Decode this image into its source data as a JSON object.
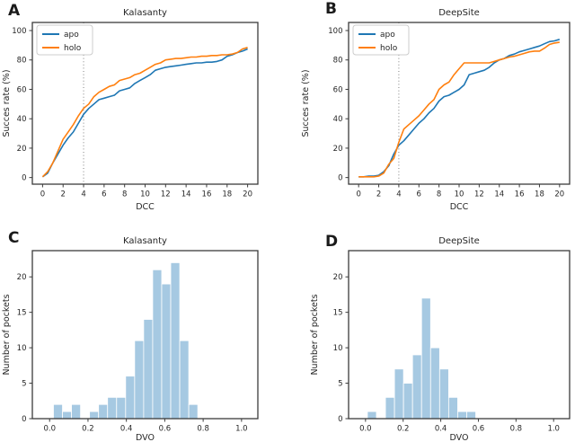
{
  "palette": {
    "apo": "#1f77b4",
    "holo": "#ff7f0e",
    "bars": "#a6c9e2",
    "bar_edge": "#ffffff",
    "spine": "#3b3b3b",
    "text": "#262626",
    "vline": "#808080",
    "legend_border": "#cccccc"
  },
  "chart_data": [
    {
      "type": "line",
      "panel_label": "A",
      "title": "Kalasanty",
      "xlabel": "DCC",
      "ylabel": "Succes rate (%)",
      "xlim": [
        -1,
        21
      ],
      "ylim": [
        -4.5,
        105.5
      ],
      "xticks": [
        0,
        2,
        4,
        6,
        8,
        10,
        12,
        14,
        16,
        18,
        20
      ],
      "xtick_labels": [
        "0",
        "2",
        "4",
        "6",
        "8",
        "10",
        "12",
        "14",
        "16",
        "18",
        "20"
      ],
      "yticks": [
        0,
        20,
        40,
        60,
        80,
        100
      ],
      "ytick_labels": [
        "0",
        "20",
        "40",
        "60",
        "80",
        "100"
      ],
      "vline_x": 4,
      "grid": false,
      "legend_position": "upper left",
      "x_start": 0,
      "x_step": 0.5,
      "series": [
        {
          "name": "apo",
          "color": "#1f77b4",
          "values": [
            0.5,
            3,
            10,
            16,
            22,
            27,
            31,
            37,
            43,
            47,
            50,
            53,
            54,
            55,
            56,
            59,
            60,
            61,
            64,
            66,
            68,
            70,
            73,
            74,
            75,
            75.5,
            76,
            76.5,
            77,
            77.5,
            78,
            78,
            78.5,
            78.5,
            79,
            80,
            82.5,
            83.5,
            85,
            86,
            87.5
          ]
        },
        {
          "name": "holo",
          "color": "#ff7f0e",
          "values": [
            0.5,
            4,
            10,
            18,
            26,
            31,
            36,
            42,
            47,
            50,
            55,
            58,
            60,
            62,
            63,
            66,
            67,
            68,
            70,
            71,
            73,
            75,
            77,
            78,
            80,
            80.5,
            81,
            81,
            81.5,
            82,
            82,
            82.5,
            82.5,
            83,
            83,
            83.5,
            83.5,
            84,
            85,
            87.5,
            88.5
          ]
        }
      ]
    },
    {
      "type": "line",
      "panel_label": "B",
      "title": "DeepSite",
      "xlabel": "DCC",
      "ylabel": "Succes rate (%)",
      "xlim": [
        -1,
        21
      ],
      "ylim": [
        -4.5,
        105.5
      ],
      "xticks": [
        0,
        2,
        4,
        6,
        8,
        10,
        12,
        14,
        16,
        18,
        20
      ],
      "xtick_labels": [
        "0",
        "2",
        "4",
        "6",
        "8",
        "10",
        "12",
        "14",
        "16",
        "18",
        "20"
      ],
      "yticks": [
        0,
        20,
        40,
        60,
        80,
        100
      ],
      "ytick_labels": [
        "0",
        "20",
        "40",
        "60",
        "80",
        "100"
      ],
      "vline_x": 4,
      "grid": false,
      "legend_position": "upper left",
      "x_start": 0,
      "x_step": 0.5,
      "series": [
        {
          "name": "apo",
          "color": "#1f77b4",
          "values": [
            0.5,
            0.5,
            1,
            1,
            1.5,
            4,
            8,
            16,
            22,
            25,
            29,
            33,
            37,
            40,
            44,
            47,
            52,
            55,
            56,
            58,
            60,
            63,
            70,
            71,
            72,
            73,
            75,
            78,
            80,
            81,
            83,
            84,
            85.5,
            86.5,
            87.5,
            88.5,
            89.5,
            91,
            92.5,
            93,
            94
          ]
        },
        {
          "name": "holo",
          "color": "#ff7f0e",
          "values": [
            0.5,
            0.5,
            0.5,
            0.5,
            1,
            3,
            9,
            13,
            24,
            33,
            36,
            39,
            42,
            46,
            50,
            53,
            60,
            63,
            65,
            70,
            74,
            78,
            78,
            78,
            78,
            78,
            78,
            79,
            80,
            81,
            82,
            82.5,
            83.5,
            84.5,
            85.5,
            86,
            86,
            88,
            90.5,
            91.5,
            92
          ]
        }
      ]
    },
    {
      "type": "histogram",
      "panel_label": "C",
      "title": "Kalasanty",
      "xlabel": "DVO",
      "ylabel": "Number of pockets",
      "xlim": [
        -0.09,
        1.085
      ],
      "ylim": [
        0,
        23.7
      ],
      "xticks": [
        0.0,
        0.2,
        0.4,
        0.6,
        0.8,
        1.0
      ],
      "xtick_labels": [
        "0.0",
        "0.2",
        "0.4",
        "0.6",
        "0.8",
        "1.0"
      ],
      "yticks": [
        0,
        5,
        10,
        15,
        20
      ],
      "ytick_labels": [
        "0",
        "5",
        "10",
        "15",
        "20"
      ],
      "grid": false,
      "bar_color": "#a6c9e2",
      "bin_start": 0.02,
      "bin_width": 0.047,
      "counts": [
        2,
        1,
        2,
        0,
        1,
        2,
        3,
        3,
        6,
        11,
        14,
        21,
        19,
        22,
        11,
        2
      ]
    },
    {
      "type": "histogram",
      "panel_label": "D",
      "title": "DeepSite",
      "xlabel": "DVO",
      "ylabel": "Number of pockets",
      "xlim": [
        -0.09,
        1.085
      ],
      "ylim": [
        0,
        23.7
      ],
      "xticks": [
        0.0,
        0.2,
        0.4,
        0.6,
        0.8,
        1.0
      ],
      "xtick_labels": [
        "0.0",
        "0.2",
        "0.4",
        "0.6",
        "0.8",
        "1.0"
      ],
      "yticks": [
        0,
        5,
        10,
        15,
        20
      ],
      "ytick_labels": [
        "0",
        "5",
        "10",
        "15",
        "20"
      ],
      "grid": false,
      "bar_color": "#a6c9e2",
      "bin_start": 0.01,
      "bin_width": 0.048,
      "counts": [
        1,
        0,
        3,
        7,
        5,
        9,
        17,
        10,
        7,
        3,
        1,
        1
      ]
    }
  ]
}
